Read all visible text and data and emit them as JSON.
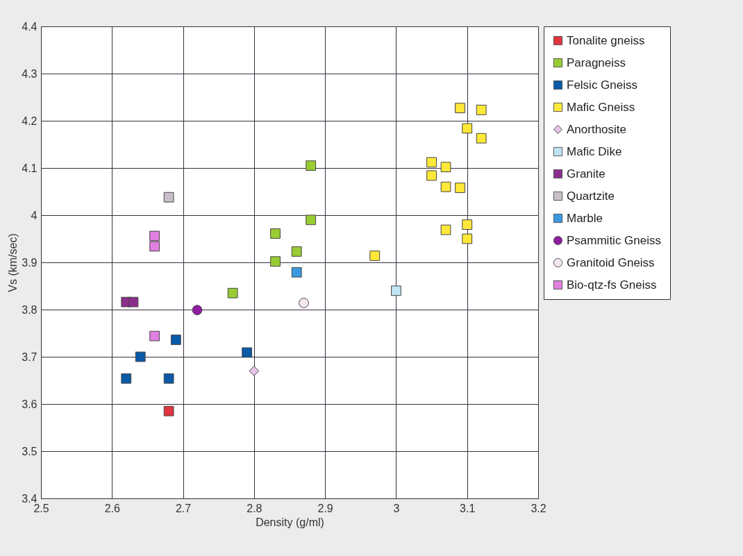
{
  "chart_data": {
    "type": "scatter",
    "xlabel": "Density (g/ml)",
    "ylabel": "Vs (km/sec)",
    "xlim": [
      2.5,
      3.2
    ],
    "ylim": [
      3.4,
      4.4
    ],
    "xticks": [
      2.5,
      2.6,
      2.7,
      2.8,
      2.9,
      3,
      3.1,
      3.2
    ],
    "yticks": [
      3.4,
      3.5,
      3.6,
      3.7,
      3.8,
      3.9,
      4,
      4.1,
      4.2,
      4.3,
      4.4
    ],
    "grid": true,
    "legend": "right",
    "series": [
      {
        "name": "Tonalite gneiss",
        "color": "#e0343f",
        "marker": "square",
        "x": [
          2.68
        ],
        "values": [
          3.585
        ]
      },
      {
        "name": "Paragneiss",
        "color": "#99cc33",
        "marker": "square",
        "x": [
          2.88,
          2.88,
          2.83,
          2.86,
          2.83,
          2.77
        ],
        "values": [
          4.105,
          3.99,
          3.961,
          3.923,
          3.902,
          3.835
        ]
      },
      {
        "name": "Felsic Gneiss",
        "color": "#0a5aa8",
        "marker": "square",
        "x": [
          2.69,
          2.64,
          2.79,
          2.62,
          2.68
        ],
        "values": [
          3.736,
          3.7,
          3.709,
          3.654,
          3.654
        ]
      },
      {
        "name": "Mafic Gneiss",
        "color": "#ffe838",
        "marker": "square",
        "x": [
          3.09,
          3.12,
          3.1,
          3.12,
          3.05,
          3.07,
          3.05,
          3.07,
          3.09,
          3.1,
          3.07,
          3.1,
          2.97
        ],
        "values": [
          4.227,
          4.223,
          4.184,
          4.163,
          4.112,
          4.102,
          4.084,
          4.06,
          4.058,
          3.98,
          3.969,
          3.95,
          3.914
        ]
      },
      {
        "name": "Anorthosite",
        "color": "#e8c4e8",
        "marker": "diamond",
        "x": [
          2.8
        ],
        "values": [
          3.67
        ]
      },
      {
        "name": "Mafic Dike",
        "color": "#bfe4f4",
        "marker": "square",
        "x": [
          3.0
        ],
        "values": [
          3.84
        ]
      },
      {
        "name": "Granite",
        "color": "#8c2e8c",
        "marker": "square",
        "x": [
          2.62,
          2.63
        ],
        "values": [
          3.816,
          3.816
        ]
      },
      {
        "name": "Quartzite",
        "color": "#c8c0c8",
        "marker": "square",
        "x": [
          2.68
        ],
        "values": [
          4.038
        ]
      },
      {
        "name": "Marble",
        "color": "#3a9ae0",
        "marker": "square",
        "x": [
          2.86
        ],
        "values": [
          3.879
        ]
      },
      {
        "name": "Psammitic Gneiss",
        "color": "#8e1ca0",
        "marker": "circle",
        "x": [
          2.72
        ],
        "values": [
          3.799
        ]
      },
      {
        "name": "Granitoid Gneiss",
        "color": "#f4e6f0",
        "marker": "circle",
        "x": [
          2.87
        ],
        "values": [
          3.814
        ]
      },
      {
        "name": "Bio-qtz-fs Gneiss",
        "color": "#e080e0",
        "marker": "square",
        "x": [
          2.66,
          2.66,
          2.66
        ],
        "values": [
          3.956,
          3.934,
          3.744
        ]
      }
    ]
  }
}
